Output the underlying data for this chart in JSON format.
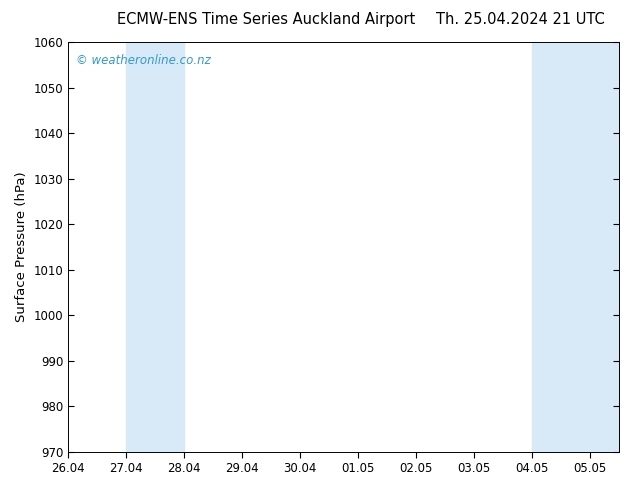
{
  "title_left": "ECMW-ENS Time Series Auckland Airport",
  "title_right": "Th. 25.04.2024 21 UTC",
  "ylabel": "Surface Pressure (hPa)",
  "ylim": [
    970,
    1060
  ],
  "yticks": [
    970,
    980,
    990,
    1000,
    1010,
    1020,
    1030,
    1040,
    1050,
    1060
  ],
  "xlim_min": 0,
  "xlim_max": 9.5,
  "xtick_labels": [
    "26.04",
    "27.04",
    "28.04",
    "29.04",
    "30.04",
    "01.05",
    "02.05",
    "03.05",
    "04.05",
    "05.05"
  ],
  "xtick_positions": [
    0,
    1,
    2,
    3,
    4,
    5,
    6,
    7,
    8,
    9
  ],
  "shaded_bands": [
    {
      "xmin": 1.0,
      "xmax": 2.0
    },
    {
      "xmin": 8.0,
      "xmax": 9.5
    }
  ],
  "band_color": "#d8eaf8",
  "background_color": "#ffffff",
  "watermark": "© weatheronline.co.nz",
  "watermark_color": "#3399cc",
  "title_fontsize": 10.5,
  "ylabel_fontsize": 9.5,
  "tick_fontsize": 8.5,
  "watermark_fontsize": 8.5
}
